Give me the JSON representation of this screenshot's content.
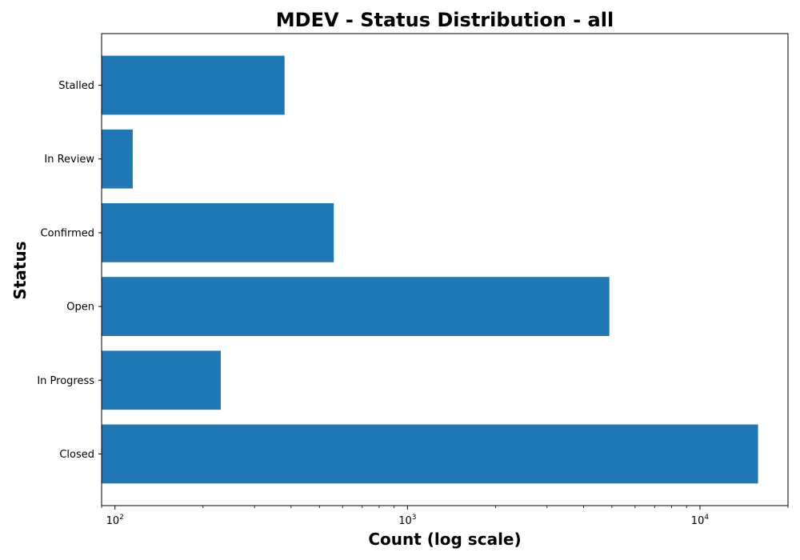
{
  "chart_data": {
    "type": "bar",
    "orientation": "horizontal",
    "title": "MDEV - Status Distribution - all",
    "xlabel": "Count (log scale)",
    "ylabel": "Status",
    "x_scale": "log",
    "xlim": [
      90,
      20000
    ],
    "x_ticks": [
      {
        "value": 100,
        "base": "10",
        "exp": "2"
      },
      {
        "value": 1000,
        "base": "10",
        "exp": "3"
      },
      {
        "value": 10000,
        "base": "10",
        "exp": "4"
      }
    ],
    "categories": [
      "Closed",
      "In Progress",
      "Open",
      "Confirmed",
      "In Review",
      "Stalled"
    ],
    "values": [
      15800,
      230,
      4900,
      560,
      115,
      380
    ],
    "bar_color": "#1f77b4",
    "grid": false,
    "legend": "none"
  }
}
